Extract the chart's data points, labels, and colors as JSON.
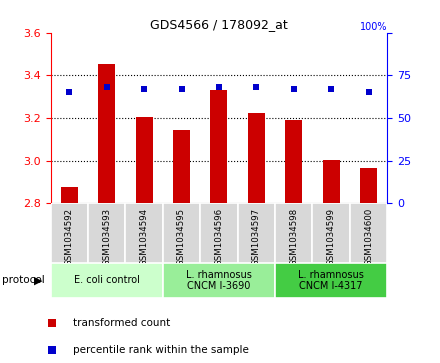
{
  "title": "GDS4566 / 178092_at",
  "samples": [
    "GSM1034592",
    "GSM1034593",
    "GSM1034594",
    "GSM1034595",
    "GSM1034596",
    "GSM1034597",
    "GSM1034598",
    "GSM1034599",
    "GSM1034600"
  ],
  "transformed_counts": [
    2.875,
    3.455,
    3.205,
    3.145,
    3.33,
    3.225,
    3.19,
    3.005,
    2.965
  ],
  "percentile_ranks": [
    65,
    68,
    67,
    67,
    68,
    68,
    67,
    67,
    65
  ],
  "ylim_left": [
    2.8,
    3.6
  ],
  "ylim_right": [
    0,
    100
  ],
  "yticks_left": [
    2.8,
    3.0,
    3.2,
    3.4,
    3.6
  ],
  "yticks_right": [
    0,
    25,
    50,
    75,
    100
  ],
  "bar_color": "#cc0000",
  "dot_color": "#0000cc",
  "grid_lines": [
    3.0,
    3.2,
    3.4
  ],
  "protocol_groups": [
    {
      "label": "E. coli control",
      "start": 0,
      "end": 3,
      "color": "#ccffcc"
    },
    {
      "label": "L. rhamnosus\nCNCM I-3690",
      "start": 3,
      "end": 6,
      "color": "#99ee99"
    },
    {
      "label": "L. rhamnosus\nCNCM I-4317",
      "start": 6,
      "end": 9,
      "color": "#44cc44"
    }
  ],
  "legend_items": [
    {
      "label": "transformed count",
      "color": "#cc0000"
    },
    {
      "label": "percentile rank within the sample",
      "color": "#0000cc"
    }
  ],
  "protocol_label": "protocol",
  "sample_cell_color": "#d8d8d8",
  "bar_width": 0.45
}
